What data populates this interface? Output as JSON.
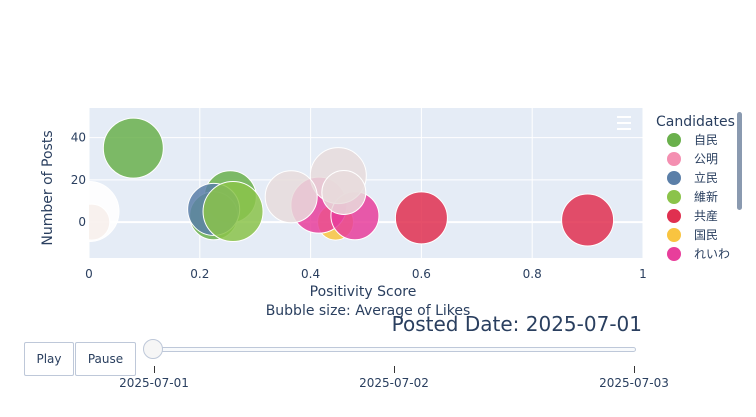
{
  "chart_data": {
    "type": "scatter",
    "xlabel": "Positivity Score",
    "ylabel": "Number of Posts",
    "annotation": "Bubble size: Average of Likes",
    "xlim": [
      0,
      1
    ],
    "ylim": [
      -17,
      54
    ],
    "xticks": [
      "0",
      "0.2",
      "0.4",
      "0.6",
      "0.8",
      "1"
    ],
    "yticks": [
      "0",
      "20",
      "40"
    ],
    "grid": true,
    "legend": {
      "title": "Candidates",
      "placement": "right",
      "entries": [
        "自民",
        "公明",
        "立民",
        "維新",
        "共産",
        "国民",
        "れいわ"
      ]
    },
    "series": [
      {
        "name": "自民",
        "color": "#6ab04c",
        "points": [
          {
            "x": 0.08,
            "y": 35,
            "size": 30
          },
          {
            "x": 0.255,
            "y": 12,
            "size": 26
          },
          {
            "x": 0.225,
            "y": 3,
            "size": 24
          }
        ]
      },
      {
        "name": "公明",
        "color": "#f48fb1",
        "points": []
      },
      {
        "name": "立民",
        "color": "#5b7fa8",
        "points": [
          {
            "x": 0.225,
            "y": 6,
            "size": 26
          }
        ]
      },
      {
        "name": "維新",
        "color": "#8bc34a",
        "points": [
          {
            "x": 0.26,
            "y": 5,
            "size": 30
          }
        ]
      },
      {
        "name": "共産",
        "color": "#e03050",
        "points": [
          {
            "x": 0.6,
            "y": 2,
            "size": 26
          },
          {
            "x": 0.9,
            "y": 1,
            "size": 26
          }
        ]
      },
      {
        "name": "国民",
        "color": "#f9c440",
        "points": [
          {
            "x": 0.445,
            "y": 0,
            "size": 18
          }
        ]
      },
      {
        "name": "れいわ",
        "color": "#e83e9b",
        "points": [
          {
            "x": 0.415,
            "y": 8,
            "size": 28
          },
          {
            "x": 0.48,
            "y": 3,
            "size": 24
          }
        ]
      },
      {
        "name": "",
        "color": "#e8dcdc",
        "points": [
          {
            "x": 0.45,
            "y": 22,
            "size": 28
          },
          {
            "x": 0.365,
            "y": 12,
            "size": 26
          },
          {
            "x": 0.46,
            "y": 14,
            "size": 22
          }
        ]
      },
      {
        "name": "",
        "color": "#b3603c",
        "points": [
          {
            "x": 0.005,
            "y": 0,
            "size": 18
          }
        ]
      },
      {
        "name": "",
        "color": "#ffffff",
        "points": [
          {
            "x": 0.0,
            "y": 5,
            "size": 30
          }
        ]
      }
    ]
  },
  "frame_label": "Posted Date: 2025-07-01",
  "controls": {
    "play_label": "Play",
    "pause_label": "Pause",
    "slider_steps": [
      "2025-07-01",
      "2025-07-02",
      "2025-07-03"
    ]
  }
}
